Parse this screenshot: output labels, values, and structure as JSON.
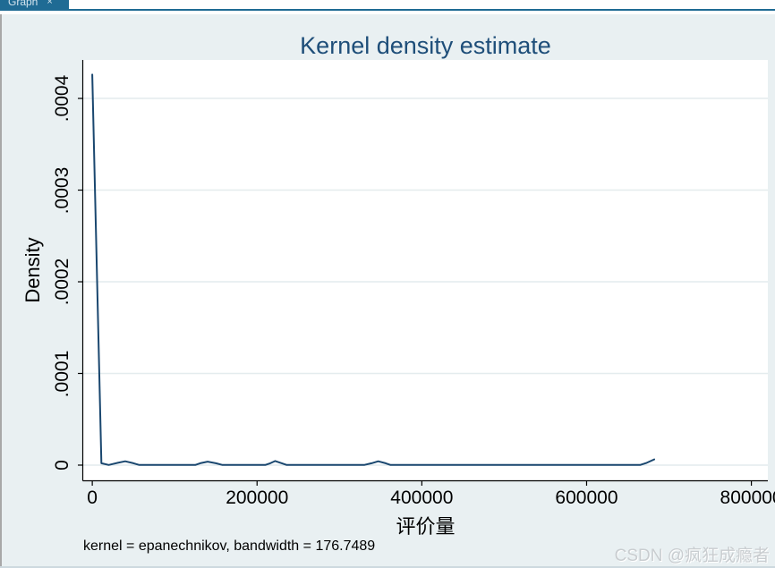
{
  "window": {
    "tab": {
      "label": "Graph",
      "close_icon": "×"
    },
    "colors": {
      "tab_bg": "#1f6b94",
      "canvas_bg": "#e9f0f2",
      "plot_bg": "#ffffff",
      "line": "#1a476f",
      "title": "#1e4e79",
      "grid": "#e4ecee",
      "axis": "#000000",
      "watermark": "#c9cdd0",
      "left_border": "#a8a8a8"
    }
  },
  "watermark": {
    "text": "CSDN @疯狂成瘾者"
  },
  "chart_data": {
    "type": "line",
    "title": "Kernel density estimate",
    "xlabel": "评价量",
    "ylabel": "Density",
    "note": "kernel = epanechnikov, bandwidth = 176.7489",
    "legend": "none",
    "grid": "horizontal",
    "xlim": [
      -11000,
      820000
    ],
    "ylim": [
      -1.66e-05,
      0.000442
    ],
    "x_ticks": {
      "values": [
        0,
        200000,
        400000,
        600000,
        800000
      ],
      "labels": [
        "0",
        "200000",
        "400000",
        "600000",
        "800000"
      ]
    },
    "y_ticks": {
      "values": [
        0,
        0.0001,
        0.0002,
        0.0003,
        0.0004
      ],
      "labels": [
        "0",
        ".0001",
        ".0002",
        ".0003",
        ".0004"
      ]
    },
    "series": [
      {
        "points": [
          [
            0,
            0.000426
          ],
          [
            11000,
            2e-06
          ],
          [
            20000,
            2e-07
          ],
          [
            31000,
            2.5e-06
          ],
          [
            40000,
            4.2e-06
          ],
          [
            50000,
            2e-06
          ],
          [
            57000,
            2e-07
          ],
          [
            125000,
            2e-07
          ],
          [
            131000,
            2e-06
          ],
          [
            140000,
            3.8e-06
          ],
          [
            150000,
            2e-06
          ],
          [
            158000,
            2e-07
          ],
          [
            210000,
            2e-07
          ],
          [
            216000,
            2e-06
          ],
          [
            222000,
            4.5e-06
          ],
          [
            230000,
            2e-06
          ],
          [
            236000,
            2e-07
          ],
          [
            330000,
            2e-07
          ],
          [
            339000,
            2e-06
          ],
          [
            347000,
            4.2e-06
          ],
          [
            356000,
            2e-06
          ],
          [
            362000,
            2e-07
          ],
          [
            665000,
            2e-07
          ],
          [
            673000,
            2.5e-06
          ],
          [
            682000,
            6.2e-06
          ]
        ]
      }
    ]
  }
}
